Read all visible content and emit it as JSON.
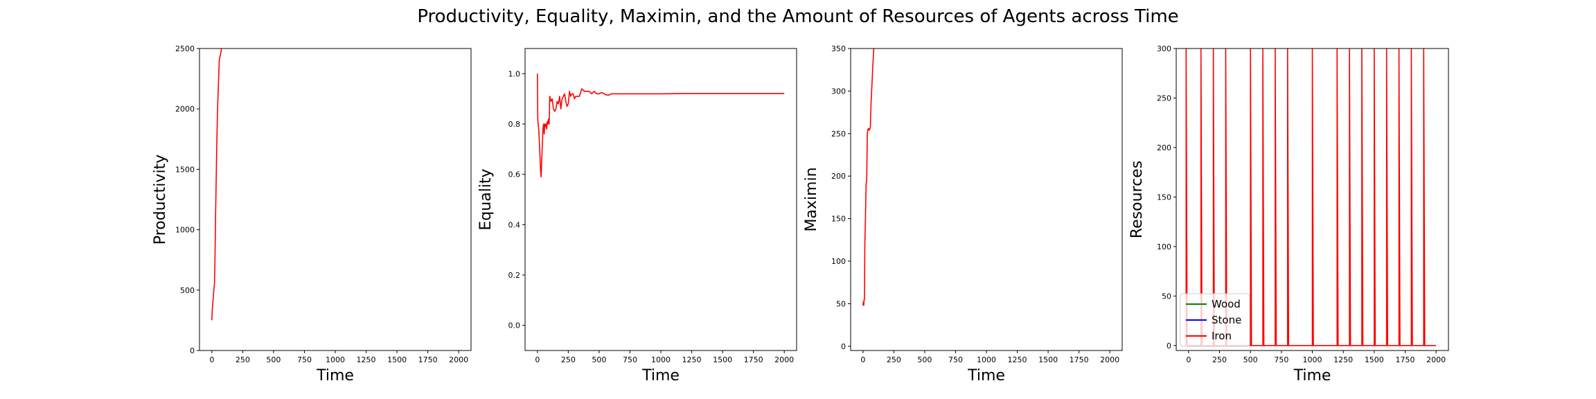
{
  "figure": {
    "title": "Productivity, Equality, Maximin, and the Amount of Resources of Agents across Time"
  },
  "chart_data": [
    {
      "type": "line",
      "xlabel": "Time",
      "ylabel": "Productivity",
      "xlim": [
        -100,
        2100
      ],
      "ylim": [
        0,
        2500
      ],
      "xticks": [
        0,
        250,
        500,
        750,
        1000,
        1250,
        1500,
        1750,
        2000
      ],
      "yticks": [
        0,
        500,
        1000,
        1500,
        2000,
        2500
      ],
      "grid": false,
      "series": [
        {
          "color": "#ff0000",
          "x": [
            0,
            3,
            6,
            10,
            14,
            18,
            22,
            26,
            30,
            35,
            40,
            45,
            50,
            55,
            60,
            65,
            70,
            75,
            80
          ],
          "y": [
            250,
            330,
            370,
            420,
            470,
            520,
            560,
            800,
            1100,
            1400,
            1700,
            1950,
            2100,
            2250,
            2400,
            2430,
            2450,
            2480,
            2520
          ]
        }
      ]
    },
    {
      "type": "line",
      "xlabel": "Time",
      "ylabel": "Equality",
      "xlim": [
        -100,
        2100
      ],
      "ylim": [
        -0.1,
        1.1
      ],
      "xticks": [
        0,
        250,
        500,
        750,
        1000,
        1250,
        1500,
        1750,
        2000
      ],
      "yticks": [
        0.0,
        0.2,
        0.4,
        0.6,
        0.8,
        1.0
      ],
      "ytick_labels": [
        "0.0",
        "0.2",
        "0.4",
        "0.6",
        "0.8",
        "1.0"
      ],
      "grid": false,
      "series": [
        {
          "color": "#ff0000",
          "x": [
            0,
            3,
            6,
            10,
            15,
            20,
            25,
            30,
            35,
            40,
            45,
            50,
            55,
            60,
            65,
            70,
            75,
            80,
            85,
            90,
            95,
            100,
            110,
            120,
            130,
            140,
            150,
            160,
            170,
            180,
            190,
            200,
            210,
            220,
            230,
            240,
            250,
            260,
            270,
            280,
            290,
            300,
            310,
            320,
            340,
            360,
            380,
            400,
            420,
            440,
            460,
            480,
            500,
            520,
            540,
            560,
            580,
            600,
            700,
            800,
            1000,
            1200,
            1500,
            1800,
            2000
          ],
          "y": [
            1.0,
            0.82,
            0.8,
            0.78,
            0.74,
            0.68,
            0.62,
            0.59,
            0.66,
            0.72,
            0.78,
            0.8,
            0.76,
            0.8,
            0.79,
            0.8,
            0.78,
            0.81,
            0.8,
            0.82,
            0.8,
            0.91,
            0.89,
            0.9,
            0.86,
            0.85,
            0.86,
            0.89,
            0.88,
            0.91,
            0.86,
            0.9,
            0.91,
            0.92,
            0.89,
            0.87,
            0.88,
            0.93,
            0.91,
            0.92,
            0.92,
            0.9,
            0.91,
            0.91,
            0.91,
            0.94,
            0.93,
            0.93,
            0.93,
            0.92,
            0.93,
            0.92,
            0.92,
            0.925,
            0.92,
            0.915,
            0.915,
            0.92,
            0.92,
            0.92,
            0.92,
            0.921,
            0.921,
            0.921,
            0.921
          ]
        }
      ]
    },
    {
      "type": "line",
      "xlabel": "Time",
      "ylabel": "Maximin",
      "xlim": [
        -100,
        2100
      ],
      "ylim": [
        -5,
        350
      ],
      "xticks": [
        0,
        250,
        500,
        750,
        1000,
        1250,
        1500,
        1750,
        2000
      ],
      "yticks": [
        0,
        50,
        100,
        150,
        200,
        250,
        300,
        350
      ],
      "grid": false,
      "series": [
        {
          "color": "#ff0000",
          "x": [
            0,
            3,
            6,
            9,
            12,
            15,
            20,
            25,
            30,
            35,
            40,
            45,
            50,
            55,
            60,
            65,
            70,
            75,
            80,
            85,
            90
          ],
          "y": [
            48,
            52,
            48,
            55,
            55,
            120,
            150,
            190,
            195,
            250,
            255,
            256,
            254,
            255,
            258,
            285,
            300,
            315,
            330,
            345,
            355
          ]
        }
      ]
    },
    {
      "type": "line",
      "xlabel": "Time",
      "ylabel": "Resources",
      "xlim": [
        -100,
        2100
      ],
      "ylim": [
        -5,
        300
      ],
      "xticks": [
        0,
        250,
        500,
        750,
        1000,
        1250,
        1500,
        1750,
        2000
      ],
      "yticks": [
        0,
        50,
        100,
        150,
        200,
        250,
        300
      ],
      "grid": false,
      "legend": {
        "position": "lower-left"
      },
      "spike_times": [
        -20,
        100,
        200,
        300,
        500,
        600,
        700,
        800,
        1000,
        1200,
        1300,
        1400,
        1500,
        1600,
        1700,
        1800,
        1900
      ],
      "spike_value": 300,
      "base_value": 0,
      "spike_start": -20,
      "line_end": 2000,
      "series": [
        {
          "name": "Wood",
          "color": "#008000"
        },
        {
          "name": "Stone",
          "color": "#0000ff"
        },
        {
          "name": "Iron",
          "color": "#ff0000"
        }
      ]
    }
  ]
}
